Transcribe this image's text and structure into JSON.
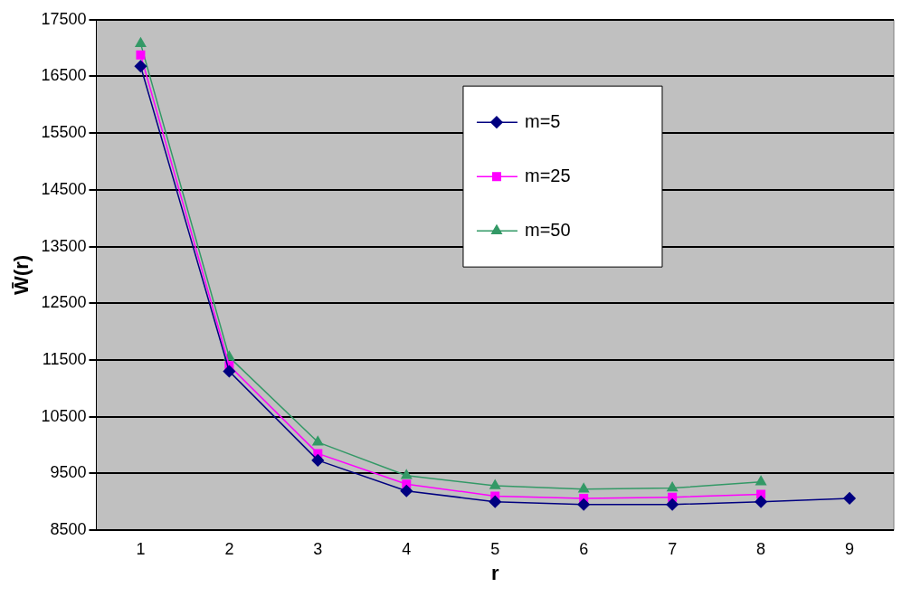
{
  "chart_data": {
    "type": "line",
    "xlabel": "r",
    "ylabel": "W̄(r)",
    "categories": [
      "1",
      "2",
      "3",
      "4",
      "5",
      "6",
      "7",
      "8",
      "9"
    ],
    "ylim": [
      8500,
      17500
    ],
    "yticks": [
      8500,
      9500,
      10500,
      11500,
      12500,
      13500,
      14500,
      15500,
      16500,
      17500
    ],
    "grid": "y",
    "legend": "top right",
    "series": [
      {
        "name": "m=5",
        "color": "#000080",
        "marker": "diamond",
        "values": [
          16680,
          11300,
          9730,
          9190,
          9000,
          8950,
          8950,
          9000,
          9060
        ]
      },
      {
        "name": "m=25",
        "color": "#ff00ff",
        "marker": "square",
        "values": [
          16880,
          11400,
          9850,
          9310,
          9100,
          9060,
          9080,
          9130,
          null
        ]
      },
      {
        "name": "m=50",
        "color": "#339966",
        "marker": "triangle",
        "values": [
          17080,
          11550,
          10050,
          9460,
          9280,
          9220,
          9240,
          9350,
          null
        ]
      }
    ]
  }
}
